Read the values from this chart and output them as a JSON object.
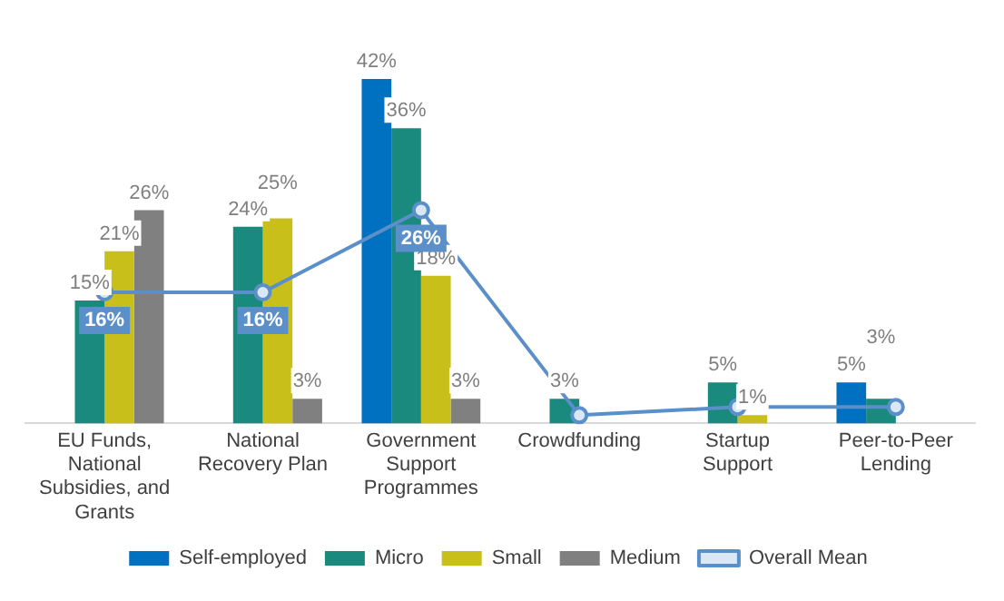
{
  "chart_data": {
    "type": "bar",
    "categories": [
      "EU Funds, National Subsidies, and Grants",
      "National Recovery Plan",
      "Government Support Programmes",
      "Crowdfunding",
      "Startup Support",
      "Peer-to-Peer Lending"
    ],
    "series": [
      {
        "name": "Self-employed",
        "color": "#0070c0",
        "values": [
          null,
          null,
          42,
          null,
          null,
          5
        ],
        "value_labels": [
          null,
          null,
          "42%",
          null,
          null,
          "5%"
        ]
      },
      {
        "name": "Micro",
        "color": "#1a8a7e",
        "values": [
          15,
          24,
          36,
          3,
          5,
          3
        ],
        "value_labels": [
          "15%",
          "24%",
          "36%",
          "3%",
          "5%",
          "3%"
        ]
      },
      {
        "name": "Small",
        "color": "#c8bf1a",
        "values": [
          21,
          25,
          18,
          null,
          1,
          null
        ],
        "value_labels": [
          "21%",
          "25%",
          "18%",
          null,
          "1%",
          null
        ]
      },
      {
        "name": "Medium",
        "color": "#808080",
        "values": [
          26,
          3,
          3,
          null,
          null,
          null
        ],
        "value_labels": [
          "26%",
          "3%",
          "3%",
          null,
          null,
          null
        ]
      },
      {
        "name": "Overall Mean",
        "type": "line",
        "color": "#5b8fc9",
        "marker": "circle",
        "values": [
          16,
          16,
          26,
          1,
          2,
          2
        ],
        "value_labels": [
          "16%",
          "16%",
          "26%",
          null,
          null,
          null
        ]
      }
    ],
    "legend": "bottom",
    "grid": false
  }
}
